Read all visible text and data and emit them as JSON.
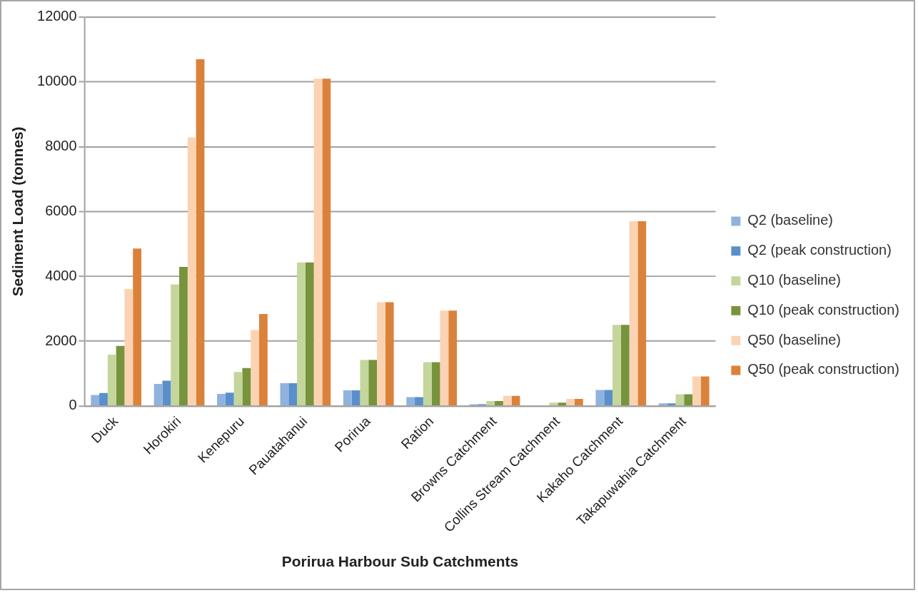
{
  "chart_data": {
    "type": "bar",
    "xlabel": "Porirua Harbour Sub Catchments",
    "ylabel": "Sediment Load (tonnes)",
    "categories": [
      "Duck",
      "Horokiri",
      "Kenepuru",
      "Pauatahanui",
      "Porirua",
      "Ration",
      "Browns Catchment",
      "Collins Stream Catchment",
      "Kakaho Catchment",
      "Takapuwahia Catchment"
    ],
    "series": [
      {
        "name": "Q2 (baseline)",
        "color": "#8fb3de",
        "values": [
          340,
          680,
          370,
          700,
          480,
          270,
          50,
          0,
          490,
          80
        ]
      },
      {
        "name": "Q2 (peak construction)",
        "color": "#5a8fcb",
        "values": [
          400,
          780,
          410,
          700,
          480,
          270,
          50,
          0,
          490,
          80
        ]
      },
      {
        "name": "Q10 (baseline)",
        "color": "#c4d69b",
        "values": [
          1580,
          3750,
          1050,
          4430,
          1420,
          1350,
          150,
          100,
          2500,
          360
        ]
      },
      {
        "name": "Q10 (peak construction)",
        "color": "#77933c",
        "values": [
          1850,
          4290,
          1170,
          4430,
          1420,
          1350,
          150,
          100,
          2500,
          360
        ]
      },
      {
        "name": "Q50 (baseline)",
        "color": "#fbd3b3",
        "values": [
          3610,
          8290,
          2340,
          10100,
          3200,
          2940,
          310,
          220,
          5700,
          910
        ]
      },
      {
        "name": "Q50 (peak construction)",
        "color": "#db823a",
        "values": [
          4860,
          10700,
          2840,
          10100,
          3200,
          2940,
          310,
          220,
          5700,
          910
        ]
      }
    ],
    "ylim": [
      0,
      12000
    ],
    "yticks": [
      0,
      2000,
      4000,
      6000,
      8000,
      10000,
      12000
    ],
    "grid": "y",
    "legend": "right"
  }
}
